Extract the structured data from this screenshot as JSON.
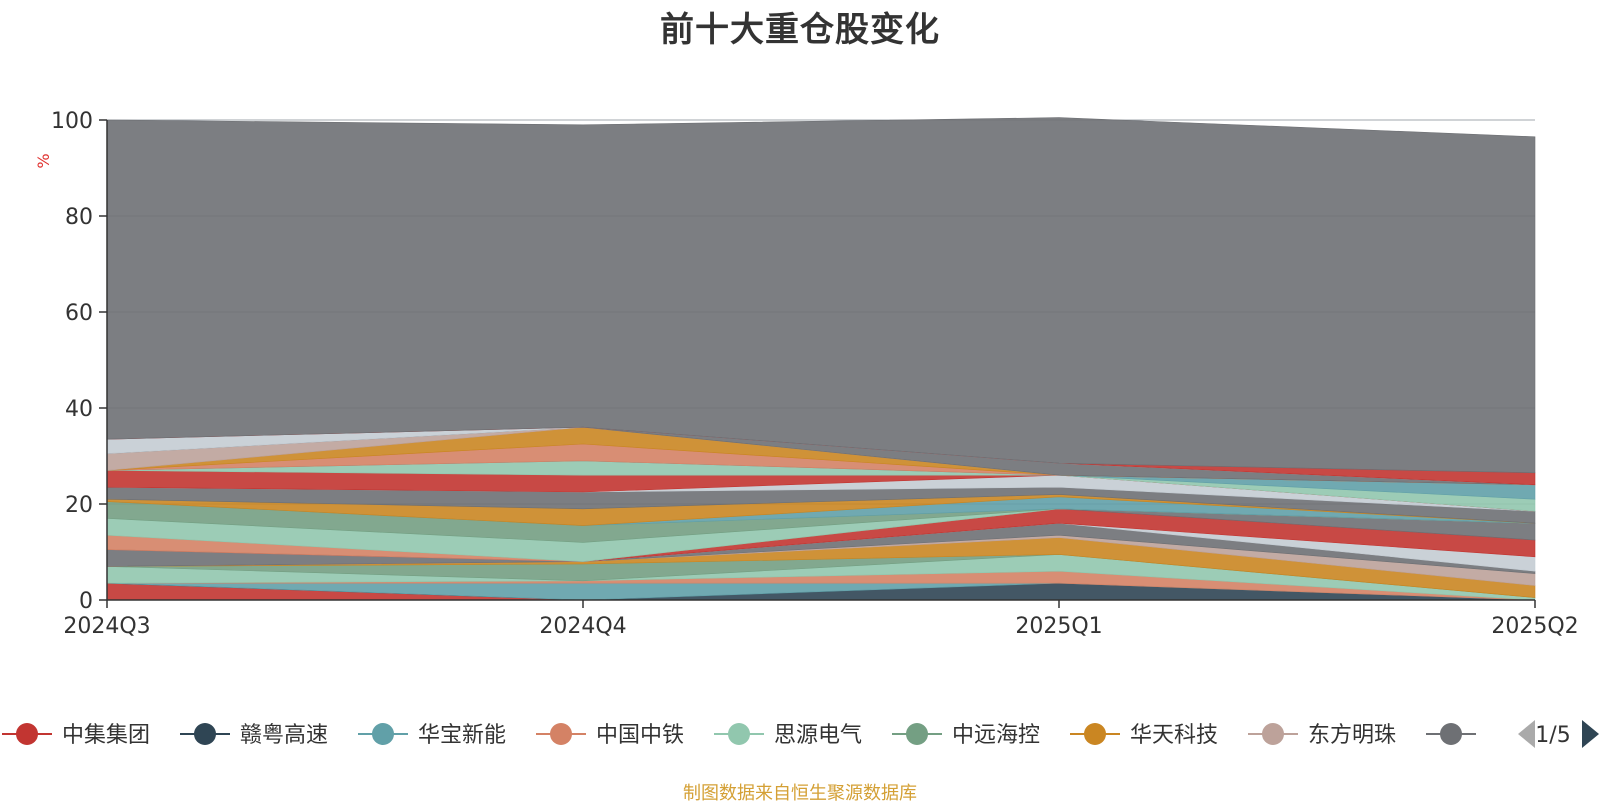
{
  "chart_data": {
    "type": "area",
    "title": "前十大重仓股变化",
    "ylabel": "%",
    "xlabel": "",
    "ylim": [
      0,
      100
    ],
    "yticks": [
      "0",
      "20",
      "40",
      "60",
      "80",
      "100"
    ],
    "categories": [
      "2024Q3",
      "2024Q4",
      "2025Q1",
      "2025Q2"
    ],
    "grid": true,
    "stacked": true,
    "series": [
      {
        "name": "中集集团",
        "color": "#c23531",
        "values": [
          3.5,
          0.0,
          0.0,
          0.0
        ]
      },
      {
        "name": "赣粤高速",
        "color": "#2f4554",
        "values": [
          0.0,
          0.0,
          3.5,
          0.0
        ]
      },
      {
        "name": "华宝新能",
        "color": "#61a0a8",
        "values": [
          0.0,
          3.5,
          0.0,
          0.0
        ]
      },
      {
        "name": "中国中铁",
        "color": "#d48265",
        "values": [
          0.0,
          0.5,
          2.5,
          0.0
        ]
      },
      {
        "name": "思源电气",
        "color": "#91c7ae",
        "values": [
          3.5,
          0.0,
          3.5,
          0.5
        ]
      },
      {
        "name": "中远海控",
        "color": "#749f83",
        "values": [
          0.0,
          3.5,
          0.0,
          0.0
        ]
      },
      {
        "name": "华天科技",
        "color": "#ca8622",
        "values": [
          0.0,
          0.5,
          3.5,
          2.5
        ]
      },
      {
        "name": "东方明珠",
        "color": "#bda29a",
        "values": [
          0.0,
          0.0,
          0.5,
          2.5
        ]
      },
      {
        "name": "",
        "color": "#6e7074",
        "values": [
          3.5,
          0.0,
          2.5,
          0.5
        ]
      },
      {
        "name": "",
        "color": "#c4ccd3",
        "values": [
          0.0,
          0.0,
          0.0,
          3.0
        ]
      },
      {
        "name": "",
        "color": "#c23531",
        "values": [
          0.0,
          0.0,
          3.0,
          3.5
        ]
      },
      {
        "name": "",
        "color": "#6e7074",
        "values": [
          0.0,
          0.0,
          0.0,
          3.5
        ]
      },
      {
        "name": "",
        "color": "#d48265",
        "values": [
          3.0,
          0.0,
          0.0,
          0.0
        ]
      },
      {
        "name": "",
        "color": "#91c7ae",
        "values": [
          3.5,
          4.0,
          0.0,
          0.0
        ]
      },
      {
        "name": "",
        "color": "#749f83",
        "values": [
          3.5,
          3.5,
          0.0,
          0.0
        ]
      },
      {
        "name": "",
        "color": "#61a0a8",
        "values": [
          0.0,
          0.0,
          2.5,
          0.0
        ]
      },
      {
        "name": "",
        "color": "#ca8622",
        "values": [
          0.5,
          3.5,
          0.5,
          0.0
        ]
      },
      {
        "name": "",
        "color": "#6e7074",
        "values": [
          2.5,
          3.5,
          1.5,
          2.5
        ]
      },
      {
        "name": "",
        "color": "#c4ccd3",
        "values": [
          0.0,
          0.0,
          2.5,
          0.0
        ]
      },
      {
        "name": "",
        "color": "#c23531",
        "values": [
          3.5,
          3.5,
          0.0,
          0.0
        ]
      },
      {
        "name": "",
        "color": "#91c7ae",
        "values": [
          0.0,
          3.0,
          0.0,
          2.5
        ]
      },
      {
        "name": "",
        "color": "#61a0a8",
        "values": [
          0.0,
          0.0,
          0.0,
          3.0
        ]
      },
      {
        "name": "",
        "color": "#d48265",
        "values": [
          0.0,
          3.5,
          0.0,
          0.0
        ]
      },
      {
        "name": "",
        "color": "#ca8622",
        "values": [
          0.0,
          3.5,
          0.0,
          0.0
        ]
      },
      {
        "name": "",
        "color": "#bda29a",
        "values": [
          3.5,
          0.0,
          0.0,
          0.0
        ]
      },
      {
        "name": "",
        "color": "#6e7074",
        "values": [
          0.0,
          0.0,
          2.5,
          0.0
        ]
      },
      {
        "name": "",
        "color": "#c4ccd3",
        "values": [
          3.0,
          0.0,
          0.0,
          0.0
        ]
      },
      {
        "name": "",
        "color": "#c23531",
        "values": [
          0.0,
          0.0,
          0.0,
          2.5
        ]
      },
      {
        "name": "",
        "color": "#6e7074",
        "values": [
          66.5,
          63.0,
          72.0,
          70.0
        ]
      }
    ],
    "legend": {
      "position": "bottom",
      "items": [
        {
          "name": "中集集团",
          "color": "#c23531"
        },
        {
          "name": "赣粤高速",
          "color": "#2f4554"
        },
        {
          "name": "华宝新能",
          "color": "#61a0a8"
        },
        {
          "name": "中国中铁",
          "color": "#d48265"
        },
        {
          "name": "思源电气",
          "color": "#91c7ae"
        },
        {
          "name": "中远海控",
          "color": "#749f83"
        },
        {
          "name": "华天科技",
          "color": "#ca8622"
        },
        {
          "name": "东方明珠",
          "color": "#bda29a"
        },
        {
          "name": "",
          "color": "#6e7074"
        }
      ],
      "page": "1/5"
    }
  },
  "footer": {
    "source": "制图数据来自恒生聚源数据库"
  }
}
